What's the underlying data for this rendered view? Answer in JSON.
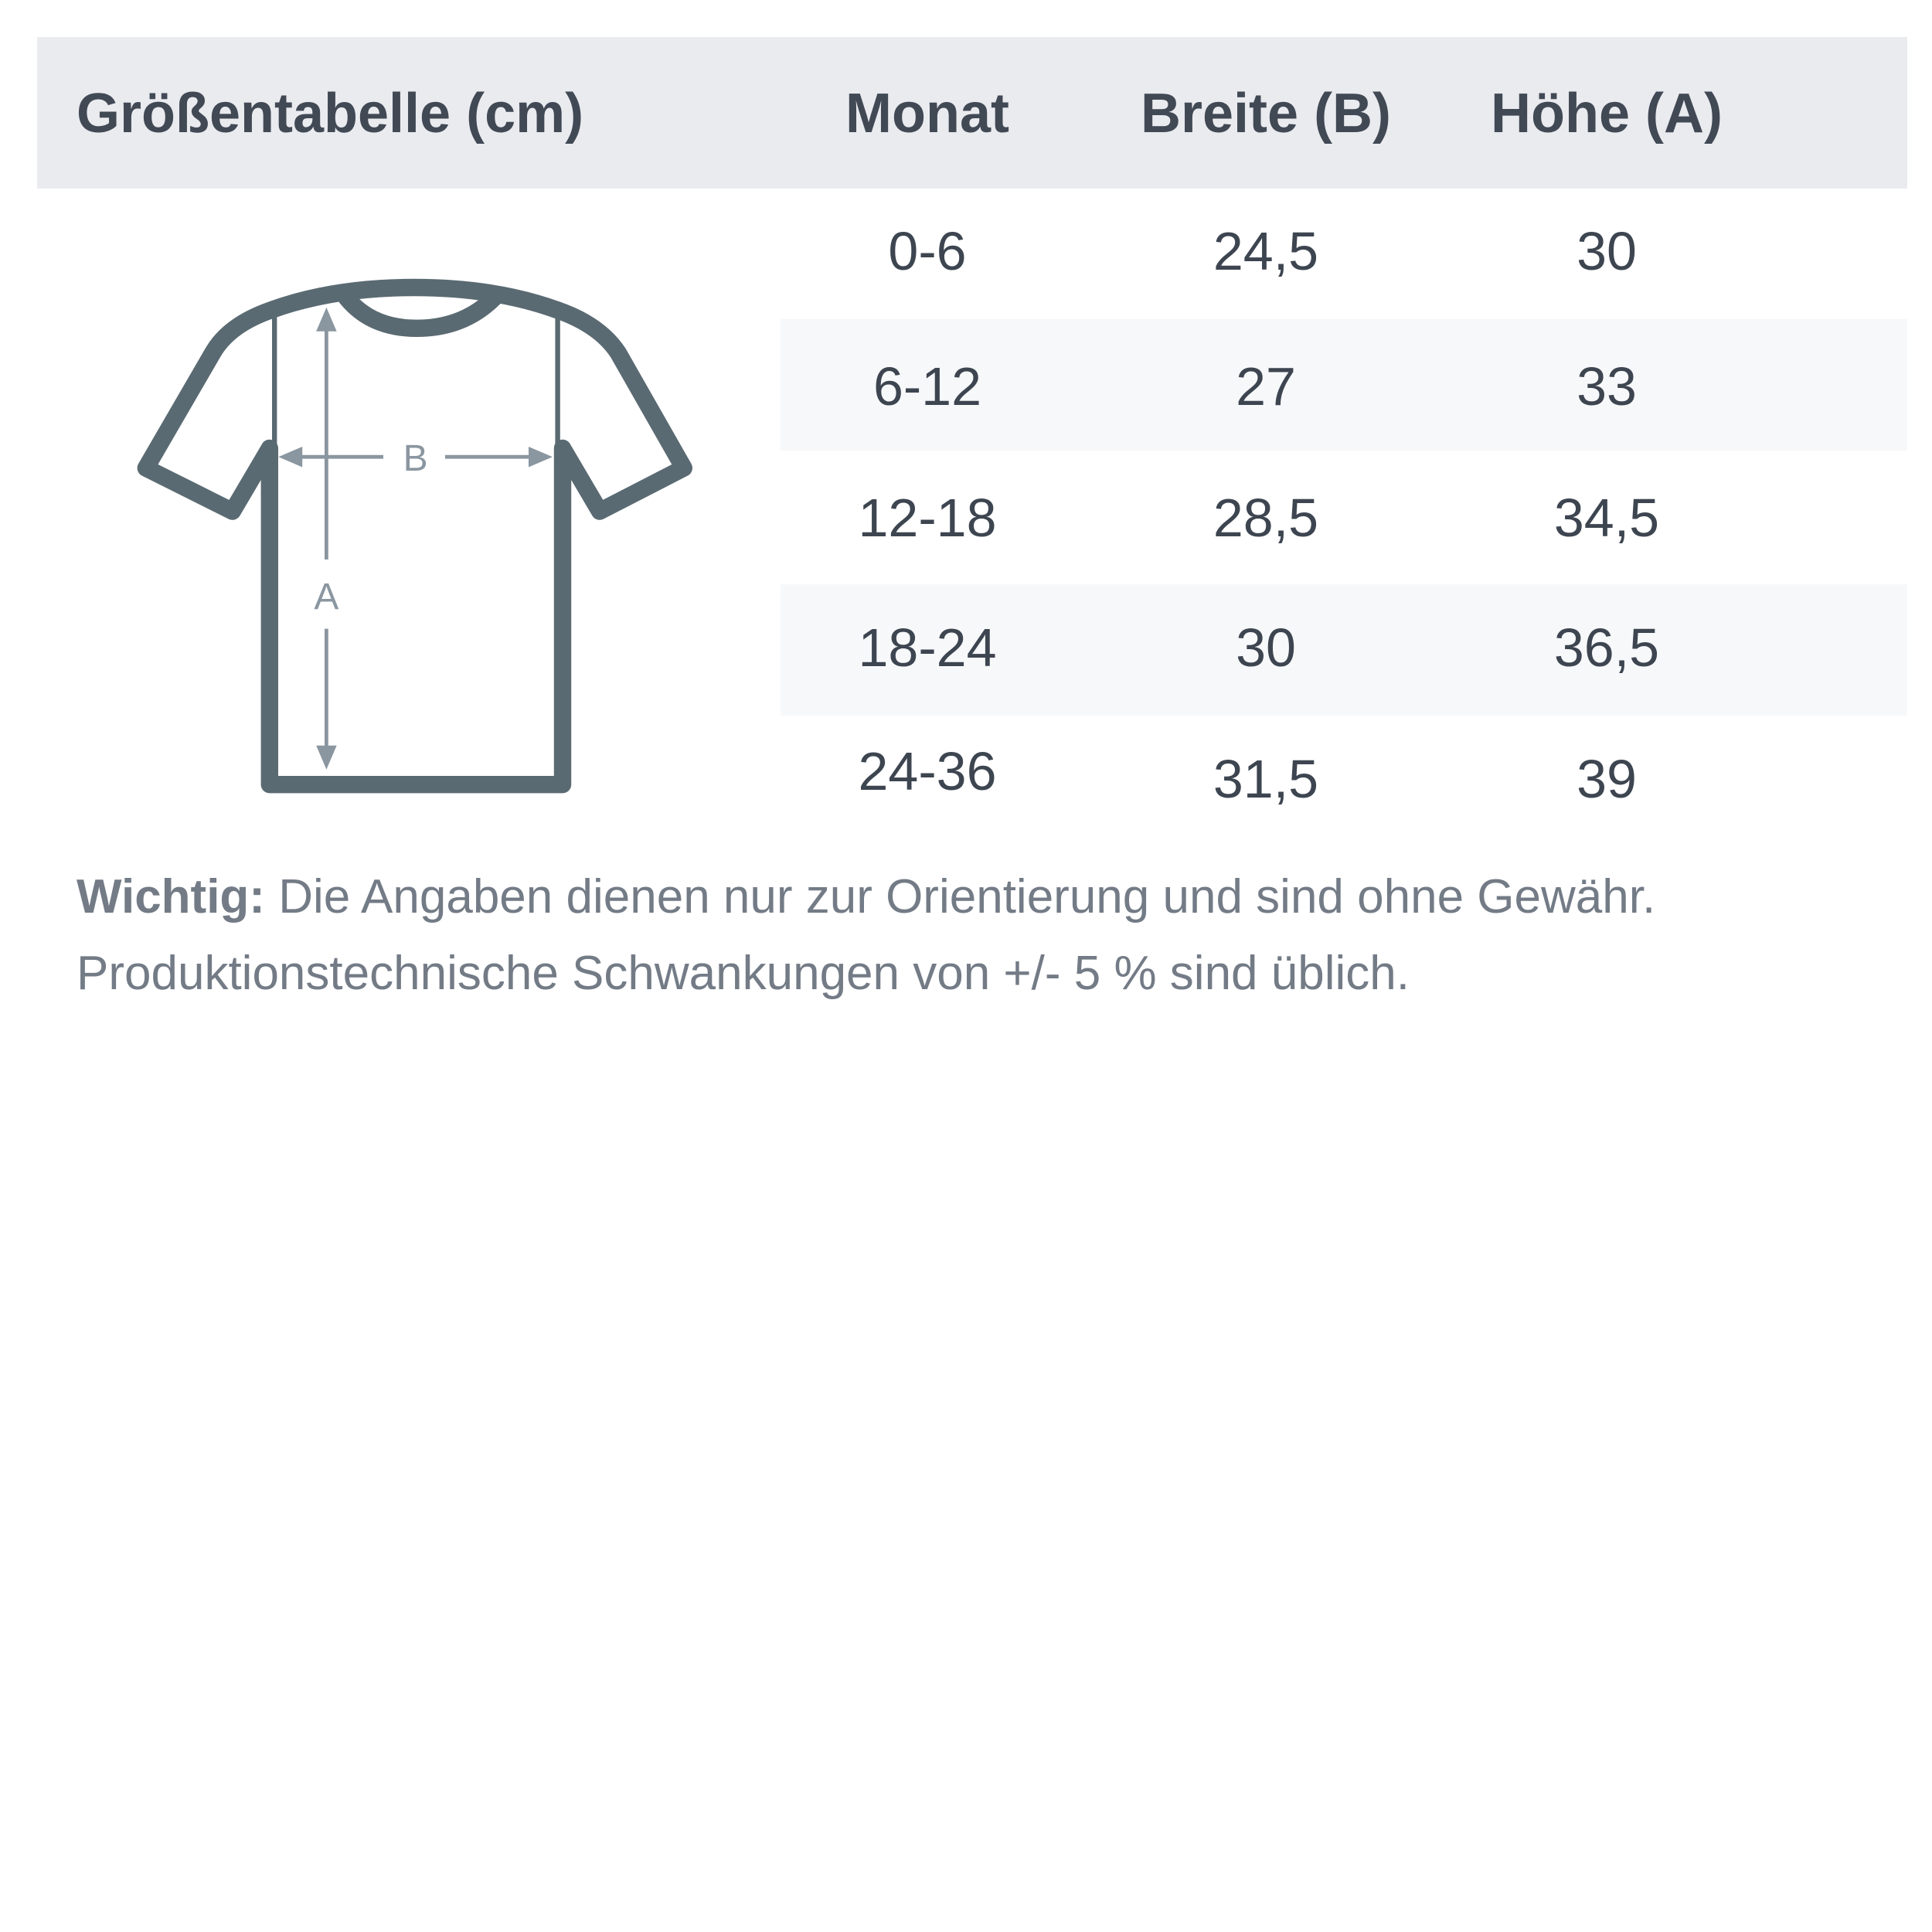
{
  "header": {
    "title": "Größentabelle (cm)",
    "columns": [
      "Monat",
      "Breite (B)",
      "Höhe (A)"
    ]
  },
  "rows": [
    {
      "month": "0-6",
      "width": "24,5",
      "height": "30"
    },
    {
      "month": "6-12",
      "width": "27",
      "height": "33"
    },
    {
      "month": "12-18",
      "width": "28,5",
      "height": "34,5"
    },
    {
      "month": "18-24",
      "width": "30",
      "height": "36,5"
    },
    {
      "month": "24-36",
      "width": "31,5",
      "height": "39"
    }
  ],
  "diagram": {
    "label_width": "B",
    "label_height": "A"
  },
  "note": {
    "label": "Wichtig:",
    "line1": "Die Angaben dienen nur zur Orientierung und sind ohne Gewähr.",
    "line2": "Produktionstechnische Schwankungen von +/- 5 % sind üblich."
  },
  "colors": {
    "header_bg": "#eaebef",
    "stripe": "#f7f8fa",
    "text": "#3d4550",
    "shirt": "#5a6a72",
    "arrows": "#8a96a0"
  }
}
